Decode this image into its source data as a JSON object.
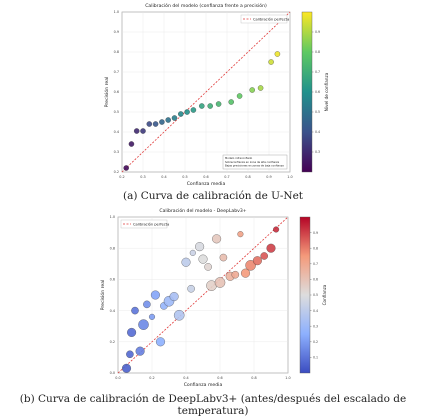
{
  "chart_data": [
    {
      "type": "scatter",
      "title": "Calibración del modelo (confianza frente a precisión)",
      "xlabel": "Confianza media",
      "ylabel": "Precisión real",
      "xlim": [
        0.2,
        1.0
      ],
      "ylim": [
        0.2,
        1.0
      ],
      "x_ticks": [
        "0.2",
        "0.3",
        "0.4",
        "0.5",
        "0.6",
        "0.7",
        "0.8",
        "0.9",
        "1.0"
      ],
      "y_ticks": [
        "0.2",
        "0.3",
        "0.4",
        "0.5",
        "0.6",
        "0.7",
        "0.8",
        "0.9",
        "1.0"
      ],
      "grid": true,
      "legend": {
        "position": "top-right",
        "entries": [
          "Calibración perfecta"
        ]
      },
      "colorbar": {
        "label": "Nivel de confianza",
        "range": [
          0.2,
          1.0
        ],
        "ticks": [
          "0.3",
          "0.4",
          "0.5",
          "0.6",
          "0.7",
          "0.8",
          "0.9"
        ],
        "colormap": "viridis"
      },
      "points": [
        {
          "x": 0.22,
          "y": 0.22,
          "c": 0.22
        },
        {
          "x": 0.245,
          "y": 0.34,
          "c": 0.26
        },
        {
          "x": 0.27,
          "y": 0.405,
          "c": 0.3
        },
        {
          "x": 0.3,
          "y": 0.405,
          "c": 0.34
        },
        {
          "x": 0.33,
          "y": 0.44,
          "c": 0.38
        },
        {
          "x": 0.36,
          "y": 0.44,
          "c": 0.42
        },
        {
          "x": 0.39,
          "y": 0.45,
          "c": 0.46
        },
        {
          "x": 0.42,
          "y": 0.46,
          "c": 0.5
        },
        {
          "x": 0.45,
          "y": 0.47,
          "c": 0.54
        },
        {
          "x": 0.48,
          "y": 0.49,
          "c": 0.57
        },
        {
          "x": 0.51,
          "y": 0.5,
          "c": 0.6
        },
        {
          "x": 0.54,
          "y": 0.51,
          "c": 0.63
        },
        {
          "x": 0.58,
          "y": 0.53,
          "c": 0.66
        },
        {
          "x": 0.62,
          "y": 0.53,
          "c": 0.7
        },
        {
          "x": 0.66,
          "y": 0.54,
          "c": 0.73
        },
        {
          "x": 0.72,
          "y": 0.55,
          "c": 0.77
        },
        {
          "x": 0.76,
          "y": 0.58,
          "c": 0.8
        },
        {
          "x": 0.82,
          "y": 0.61,
          "c": 0.85
        },
        {
          "x": 0.86,
          "y": 0.62,
          "c": 0.89
        },
        {
          "x": 0.91,
          "y": 0.75,
          "c": 0.94
        },
        {
          "x": 0.94,
          "y": 0.79,
          "c": 0.98
        }
      ],
      "annotation": [
        "Modelo infraconfiado",
        "Sobreconfianza en zona de alta confianza",
        "Bajas precisiones en zonas de baja confianza"
      ]
    },
    {
      "type": "scatter",
      "title": "Calibración del modelo - DeepLabv3+",
      "xlabel": "Confianza media",
      "ylabel": "Precisión real",
      "xlim": [
        0.0,
        1.0
      ],
      "ylim": [
        0.0,
        1.0
      ],
      "x_ticks": [
        "0.0",
        "0.2",
        "0.4",
        "0.6",
        "0.8",
        "1.0"
      ],
      "y_ticks": [
        "0.0",
        "0.2",
        "0.4",
        "0.6",
        "0.8",
        "1.0"
      ],
      "grid": true,
      "legend": {
        "position": "top-left",
        "entries": [
          "Calibración perfecta"
        ]
      },
      "colorbar": {
        "label": "Confianza",
        "range": [
          0.0,
          1.0
        ],
        "ticks": [
          "0.1",
          "0.2",
          "0.3",
          "0.4",
          "0.5",
          "0.6",
          "0.7",
          "0.8",
          "0.9"
        ],
        "colormap": "coolwarm"
      },
      "points": [
        {
          "x": 0.05,
          "y": 0.03,
          "s": 5
        },
        {
          "x": 0.07,
          "y": 0.12,
          "s": 4
        },
        {
          "x": 0.08,
          "y": 0.26,
          "s": 5
        },
        {
          "x": 0.1,
          "y": 0.4,
          "s": 4
        },
        {
          "x": 0.13,
          "y": 0.14,
          "s": 5
        },
        {
          "x": 0.15,
          "y": 0.31,
          "s": 6
        },
        {
          "x": 0.17,
          "y": 0.44,
          "s": 4
        },
        {
          "x": 0.2,
          "y": 0.36,
          "s": 3
        },
        {
          "x": 0.22,
          "y": 0.5,
          "s": 5
        },
        {
          "x": 0.25,
          "y": 0.2,
          "s": 5
        },
        {
          "x": 0.27,
          "y": 0.43,
          "s": 4
        },
        {
          "x": 0.3,
          "y": 0.46,
          "s": 6
        },
        {
          "x": 0.33,
          "y": 0.49,
          "s": 5
        },
        {
          "x": 0.36,
          "y": 0.37,
          "s": 6
        },
        {
          "x": 0.4,
          "y": 0.71,
          "s": 5
        },
        {
          "x": 0.43,
          "y": 0.54,
          "s": 4
        },
        {
          "x": 0.44,
          "y": 0.77,
          "s": 3
        },
        {
          "x": 0.48,
          "y": 0.81,
          "s": 5
        },
        {
          "x": 0.5,
          "y": 0.73,
          "s": 5
        },
        {
          "x": 0.53,
          "y": 0.68,
          "s": 4
        },
        {
          "x": 0.55,
          "y": 0.56,
          "s": 6
        },
        {
          "x": 0.58,
          "y": 0.86,
          "s": 5
        },
        {
          "x": 0.6,
          "y": 0.58,
          "s": 6
        },
        {
          "x": 0.62,
          "y": 0.74,
          "s": 4
        },
        {
          "x": 0.66,
          "y": 0.62,
          "s": 5
        },
        {
          "x": 0.69,
          "y": 0.63,
          "s": 4
        },
        {
          "x": 0.72,
          "y": 0.89,
          "s": 3
        },
        {
          "x": 0.75,
          "y": 0.64,
          "s": 5
        },
        {
          "x": 0.78,
          "y": 0.69,
          "s": 6
        },
        {
          "x": 0.82,
          "y": 0.72,
          "s": 5
        },
        {
          "x": 0.86,
          "y": 0.75,
          "s": 4
        },
        {
          "x": 0.9,
          "y": 0.8,
          "s": 5
        },
        {
          "x": 0.93,
          "y": 0.92,
          "s": 3
        }
      ]
    }
  ],
  "captions": {
    "a": "(a) Curva de calibración de U-Net",
    "b": "(b) Curva de calibración de DeepLabv3+ (antes/después del escalado de temperatura)"
  }
}
